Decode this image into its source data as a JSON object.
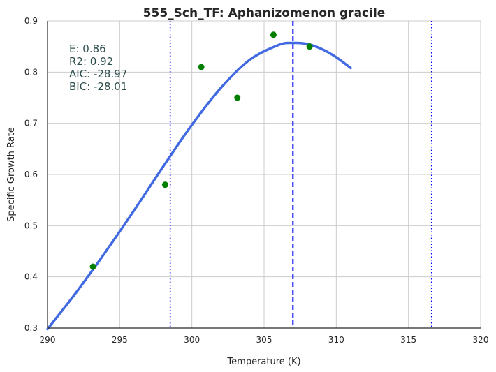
{
  "chart_data": {
    "type": "line",
    "title": "555_Sch_TF: Aphanizomenon gracile",
    "xlabel": "Temperature (K)",
    "ylabel": "Specific Growth Rate",
    "xlim": [
      290,
      320
    ],
    "ylim": [
      0.3,
      0.9
    ],
    "xticks": [
      290,
      295,
      300,
      305,
      310,
      315,
      320
    ],
    "yticks": [
      0.3,
      0.4,
      0.5,
      0.6,
      0.7,
      0.8,
      0.9
    ],
    "grid": true,
    "stats": {
      "e": "E:  0.86",
      "r2": "R2:  0.92",
      "aic": "AIC: -28.97",
      "bic": "BIC: -28.01"
    },
    "series": [
      {
        "type": "scatter",
        "color": "#007f00",
        "points": [
          {
            "x": 293.15,
            "y": 0.42
          },
          {
            "x": 298.15,
            "y": 0.58
          },
          {
            "x": 300.65,
            "y": 0.81
          },
          {
            "x": 303.15,
            "y": 0.75
          },
          {
            "x": 305.65,
            "y": 0.873
          },
          {
            "x": 308.15,
            "y": 0.85
          }
        ]
      },
      {
        "type": "line",
        "color": "#4169e1",
        "points": [
          {
            "x": 290,
            "y": 0.298
          },
          {
            "x": 292,
            "y": 0.37
          },
          {
            "x": 294,
            "y": 0.448
          },
          {
            "x": 296,
            "y": 0.53
          },
          {
            "x": 298,
            "y": 0.615
          },
          {
            "x": 300,
            "y": 0.697
          },
          {
            "x": 302,
            "y": 0.769
          },
          {
            "x": 304,
            "y": 0.824
          },
          {
            "x": 306,
            "y": 0.853
          },
          {
            "x": 307,
            "y": 0.857
          },
          {
            "x": 308,
            "y": 0.855
          },
          {
            "x": 309,
            "y": 0.845
          },
          {
            "x": 310,
            "y": 0.829
          },
          {
            "x": 311,
            "y": 0.808
          }
        ]
      }
    ],
    "vlines": [
      {
        "x": 298.5,
        "style": "dotted",
        "color": "#0000ff"
      },
      {
        "x": 307,
        "style": "dashed",
        "color": "#0000ff"
      },
      {
        "x": 316.6,
        "style": "dotted",
        "color": "#0000ff"
      }
    ]
  }
}
